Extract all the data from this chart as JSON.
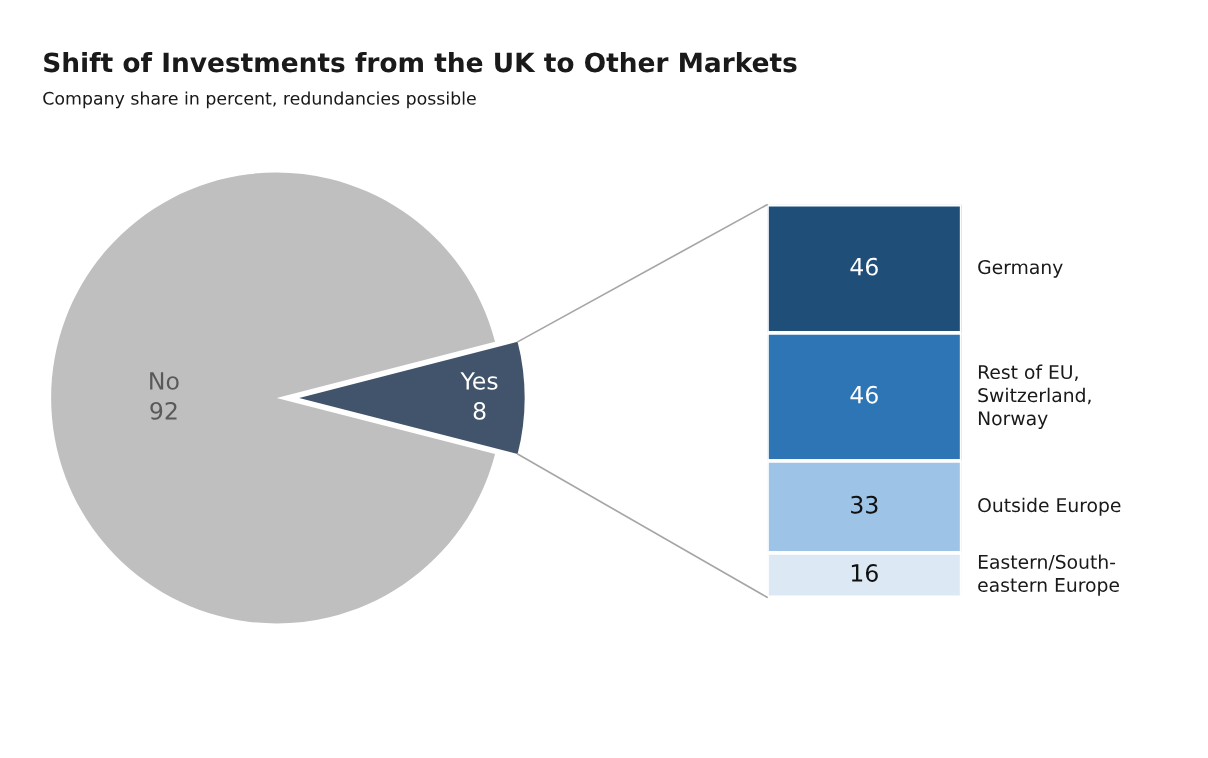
{
  "chart_data": [
    {
      "type": "pie",
      "title": "Shift of Investments from the UK to Other Markets",
      "subtitle": "Company share in percent, redundancies possible",
      "categories": [
        "No",
        "Yes"
      ],
      "values": [
        92,
        8
      ],
      "colors": [
        "#bfbfbf",
        "#42546b"
      ],
      "data_labels": true
    },
    {
      "type": "bar",
      "stacked": true,
      "categories": [
        null
      ],
      "data_labels": true,
      "series": [
        {
          "name": "Eastern/South-\neastern Europe",
          "color": "#dde8f5",
          "values": [
            16
          ]
        },
        {
          "name": "Outside Europe",
          "color": "#9dc3e6",
          "values": [
            33
          ]
        },
        {
          "name": "Rest of EU,\nSwitzerland,\nNorway",
          "color": "#2e75b6",
          "values": [
            46
          ]
        },
        {
          "name": "Germany",
          "color": "#1f4e79",
          "values": [
            46
          ]
        }
      ]
    }
  ]
}
